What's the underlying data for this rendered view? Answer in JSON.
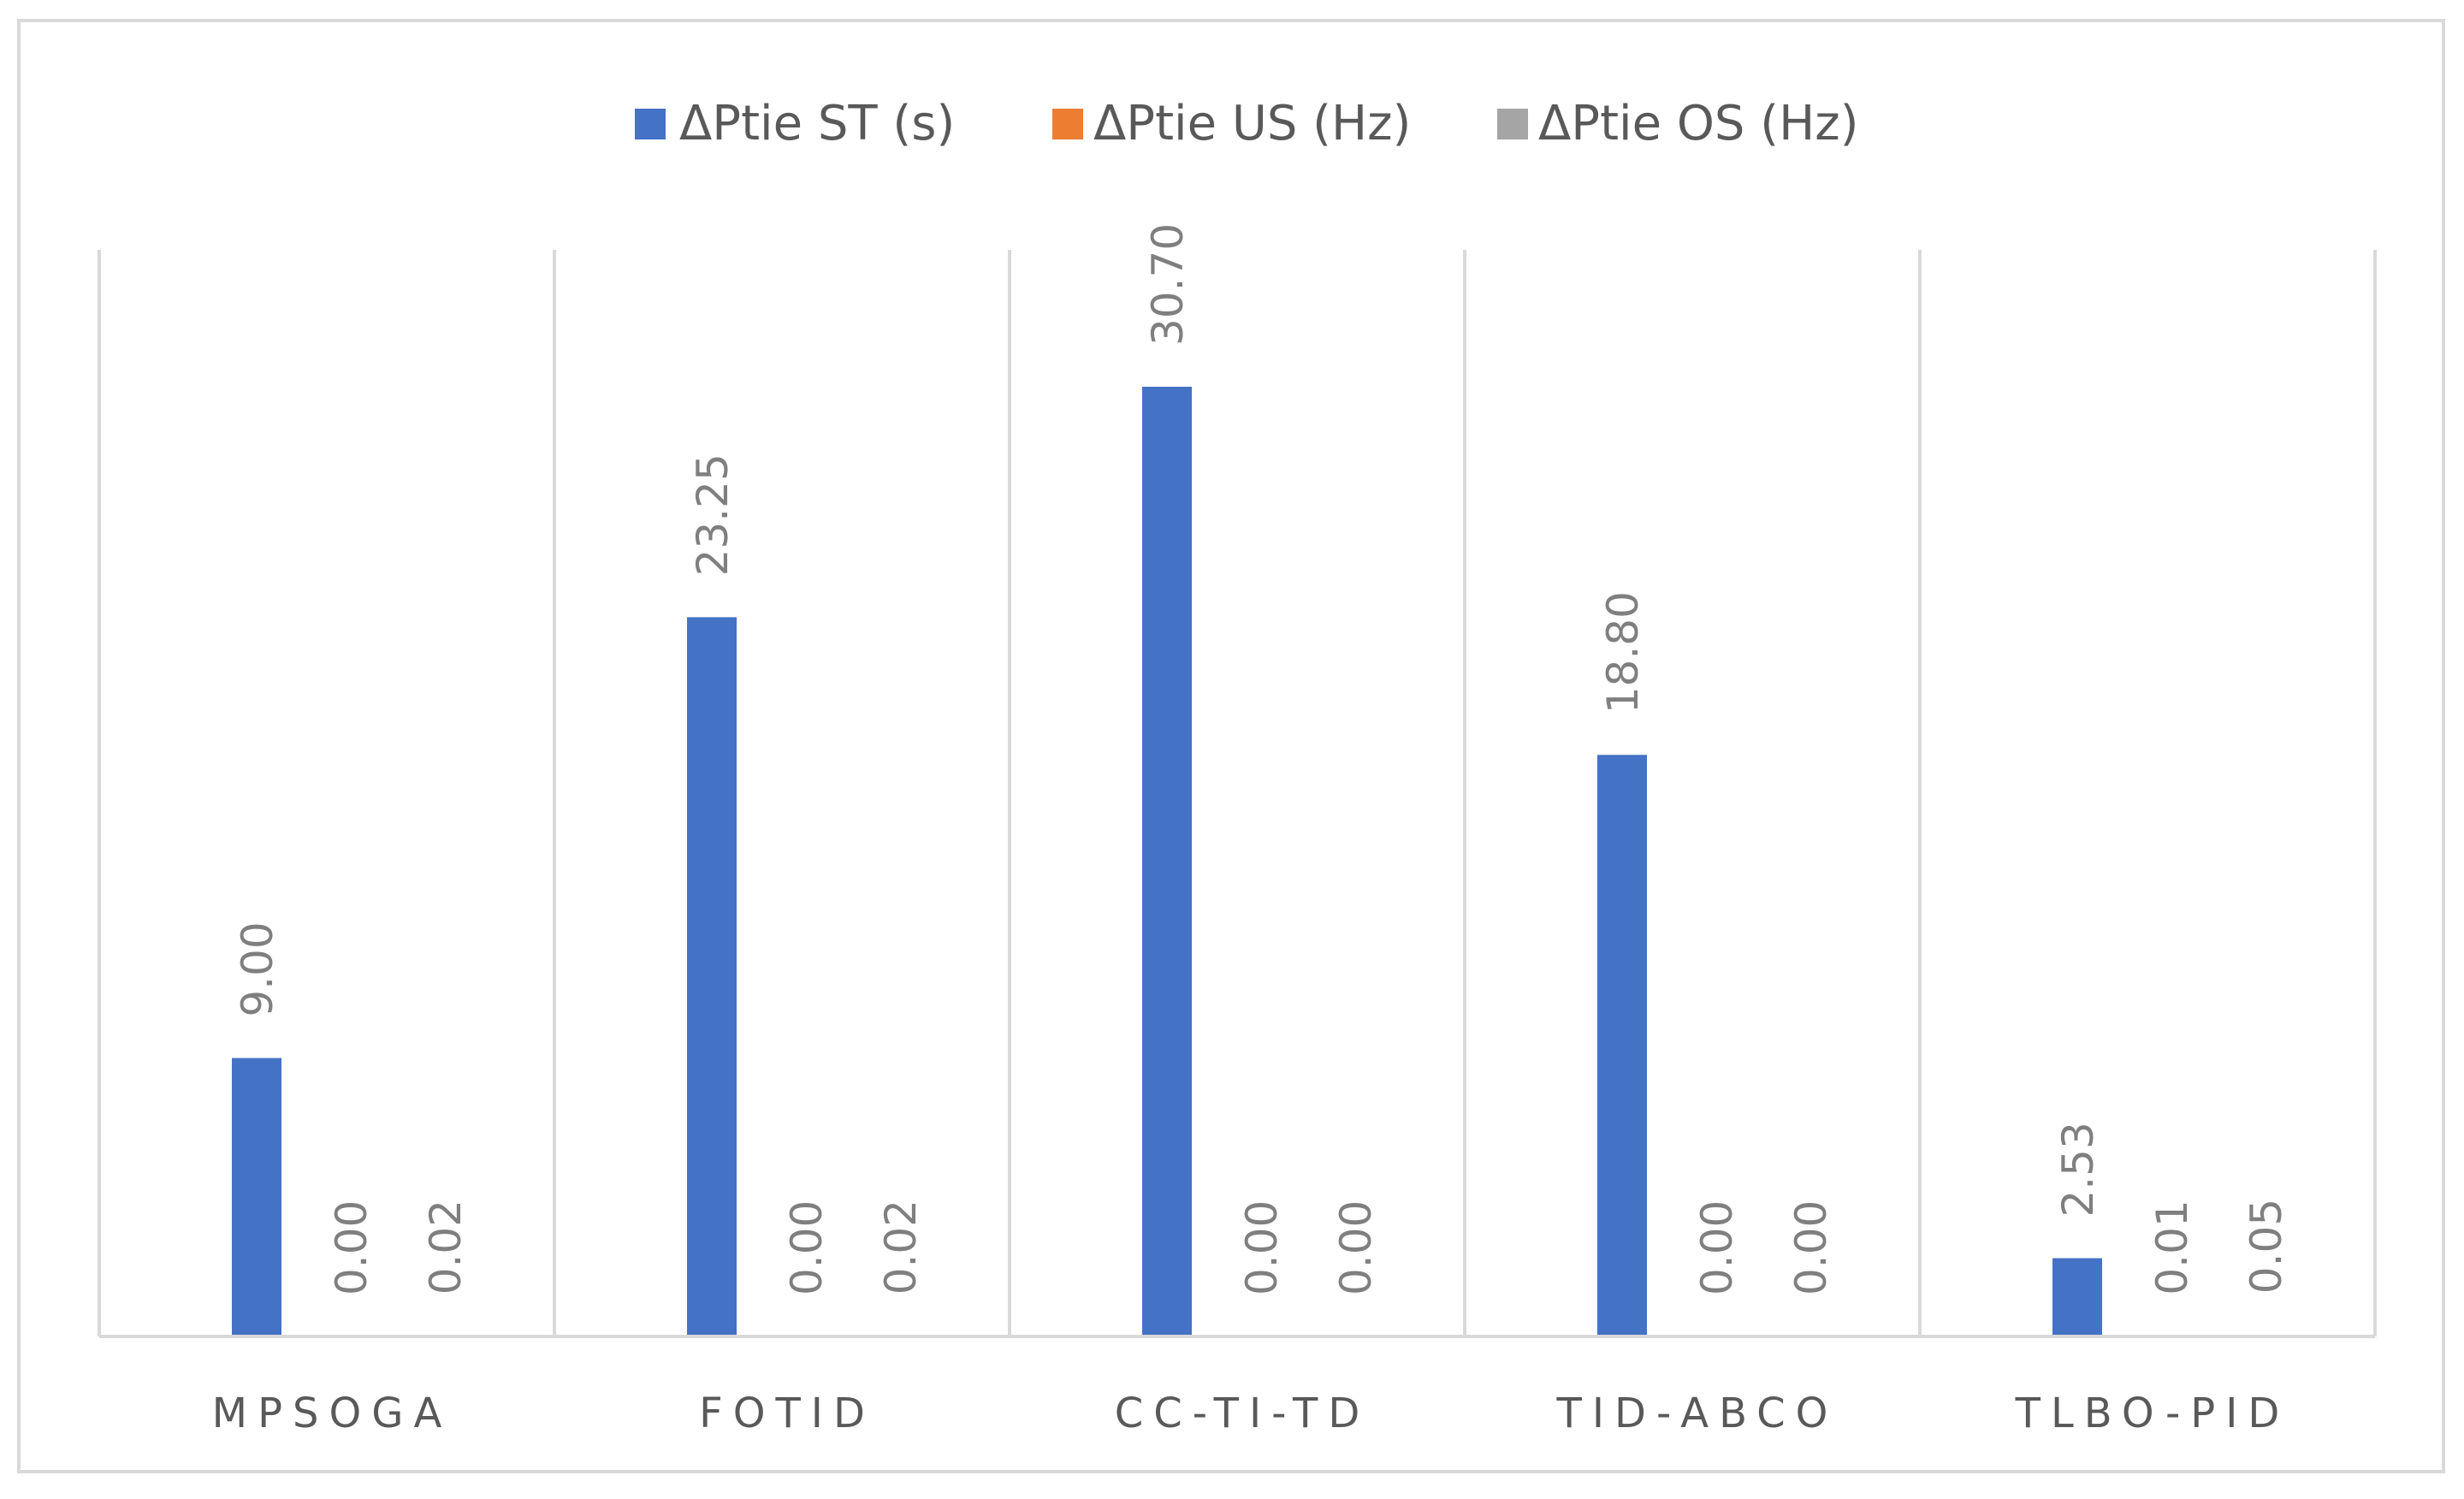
{
  "chart_data": {
    "type": "bar",
    "categories": [
      "MPSOGA",
      "FOTID",
      "CC-TI-TD",
      "TID-ABCO",
      "TLBO-PID"
    ],
    "series": [
      {
        "name": "ΔPtie ST  (s)",
        "color": "#4472c4",
        "values": [
          9.0,
          23.25,
          30.7,
          18.8,
          2.53
        ],
        "labels": [
          "9.00",
          "23.25",
          "30.70",
          "18.80",
          "2.53"
        ]
      },
      {
        "name": "ΔPtie US (Hz)",
        "color": "#ed7d31",
        "values": [
          0.0,
          0.0,
          0.0,
          0.0,
          0.01
        ],
        "labels": [
          "0.00",
          "0.00",
          "0.00",
          "0.00",
          "0.01"
        ]
      },
      {
        "name": "ΔPtie OS (Hz)",
        "color": "#a5a5a5",
        "values": [
          0.02,
          0.02,
          0.0,
          0.0,
          0.05
        ],
        "labels": [
          "0.02",
          "0.02",
          "0.00",
          "0.00",
          "0.05"
        ]
      }
    ],
    "ylim": [
      0,
      35
    ],
    "legend_position": "top",
    "gridlines": "vertical category separators",
    "data_labels": "rotated vertical"
  }
}
